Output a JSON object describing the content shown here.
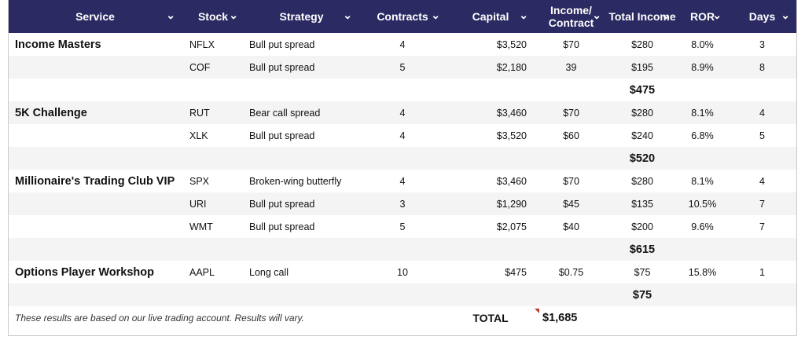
{
  "columns": [
    {
      "label": "Service"
    },
    {
      "label": "Stock"
    },
    {
      "label": "Strategy"
    },
    {
      "label": "Contracts"
    },
    {
      "label": "Capital"
    },
    {
      "label": "Income/ Contract"
    },
    {
      "label": "Total Income"
    },
    {
      "label": "ROR"
    },
    {
      "label": "Days"
    }
  ],
  "groups": [
    {
      "service": "Income Masters",
      "rows": [
        {
          "stock": "NFLX",
          "strategy": "Bull put spread",
          "contracts": "4",
          "capital": "$3,520",
          "income_per_contract": "$70",
          "total_income": "$280",
          "ror": "8.0%",
          "days": "3"
        },
        {
          "stock": "COF",
          "strategy": "Bull put spread",
          "contracts": "5",
          "capital": "$2,180",
          "income_per_contract": "39",
          "total_income": "$195",
          "ror": "8.9%",
          "days": "8"
        }
      ],
      "subtotal": "$475"
    },
    {
      "service": "5K Challenge",
      "rows": [
        {
          "stock": "RUT",
          "strategy": "Bear call spread",
          "contracts": "4",
          "capital": "$3,460",
          "income_per_contract": "$70",
          "total_income": "$280",
          "ror": "8.1%",
          "days": "4"
        },
        {
          "stock": "XLK",
          "strategy": "Bull put spread",
          "contracts": "4",
          "capital": "$3,520",
          "income_per_contract": "$60",
          "total_income": "$240",
          "ror": "6.8%",
          "days": "5"
        }
      ],
      "subtotal": "$520"
    },
    {
      "service": "Millionaire's Trading Club VIP",
      "rows": [
        {
          "stock": "SPX",
          "strategy": "Broken-wing butterfly",
          "contracts": "4",
          "capital": "$3,460",
          "income_per_contract": "$70",
          "total_income": "$280",
          "ror": "8.1%",
          "days": "4"
        },
        {
          "stock": "URI",
          "strategy": "Bull put spread",
          "contracts": "3",
          "capital": "$1,290",
          "income_per_contract": "$45",
          "total_income": "$135",
          "ror": "10.5%",
          "days": "7"
        },
        {
          "stock": "WMT",
          "strategy": "Bull put spread",
          "contracts": "5",
          "capital": "$2,075",
          "income_per_contract": "$40",
          "total_income": "$200",
          "ror": "9.6%",
          "days": "7"
        }
      ],
      "subtotal": "$615"
    },
    {
      "service": "Options Player Workshop",
      "rows": [
        {
          "stock": "AAPL",
          "strategy": "Long call",
          "contracts": "10",
          "capital": "$475",
          "income_per_contract": "$0.75",
          "total_income": "$75",
          "ror": "15.8%",
          "days": "1"
        }
      ],
      "subtotal": "$75"
    }
  ],
  "footer": {
    "note": "These results are based on our live trading account. Results will vary.",
    "total_label": "TOTAL",
    "total_value": "$1,685"
  },
  "icons": {
    "column_filter": "chevron-down-icon"
  },
  "colors": {
    "header_bg": "#2b2a62",
    "header_text": "#ffffff",
    "stripe": "#f4f4f4",
    "comment_marker": "#c0392b"
  }
}
